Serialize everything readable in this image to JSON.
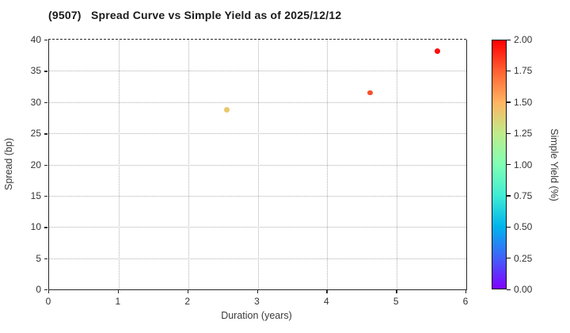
{
  "title": "(9507)   Spread Curve vs Simple Yield as of 2025/12/12",
  "chart_data": {
    "type": "scatter",
    "title": "(9507)   Spread Curve vs Simple Yield as of 2025/12/12",
    "xlabel": "Duration (years)",
    "ylabel": "Spread (bp)",
    "colorbar_label": "Simple Yield (%)",
    "xlim": [
      0,
      6
    ],
    "ylim": [
      0,
      40
    ],
    "x_ticks": [
      0,
      1,
      2,
      3,
      4,
      5,
      6
    ],
    "y_ticks": [
      0,
      5,
      10,
      15,
      20,
      25,
      30,
      35,
      40
    ],
    "grid": "dotted",
    "legend_position": "none",
    "colorbar": {
      "range": [
        0.0,
        2.0
      ],
      "tick_labels": [
        "2.00",
        "1.75",
        "1.50",
        "1.25",
        "1.00",
        "0.75",
        "0.50",
        "0.25",
        "0.00"
      ],
      "colormap": "rainbow",
      "stops": [
        {
          "pos": 0,
          "color": "#8000FF"
        },
        {
          "pos": 12.5,
          "color": "#4062FA"
        },
        {
          "pos": 25,
          "color": "#00B4EC"
        },
        {
          "pos": 37.5,
          "color": "#40ECD4"
        },
        {
          "pos": 50,
          "color": "#80FFB4"
        },
        {
          "pos": 62.5,
          "color": "#BFEC8A"
        },
        {
          "pos": 75,
          "color": "#FFB461"
        },
        {
          "pos": 87.5,
          "color": "#FF6232"
        },
        {
          "pos": 100,
          "color": "#FF0000"
        }
      ]
    },
    "points": [
      {
        "duration": 2.56,
        "spread": 28.8,
        "simple_yield": 1.4,
        "color": "#E9C96E"
      },
      {
        "duration": 4.62,
        "spread": 31.5,
        "simple_yield": 1.85,
        "color": "#F4502B"
      },
      {
        "duration": 5.58,
        "spread": 38.2,
        "simple_yield": 1.98,
        "color": "#FE0D0D"
      }
    ]
  }
}
